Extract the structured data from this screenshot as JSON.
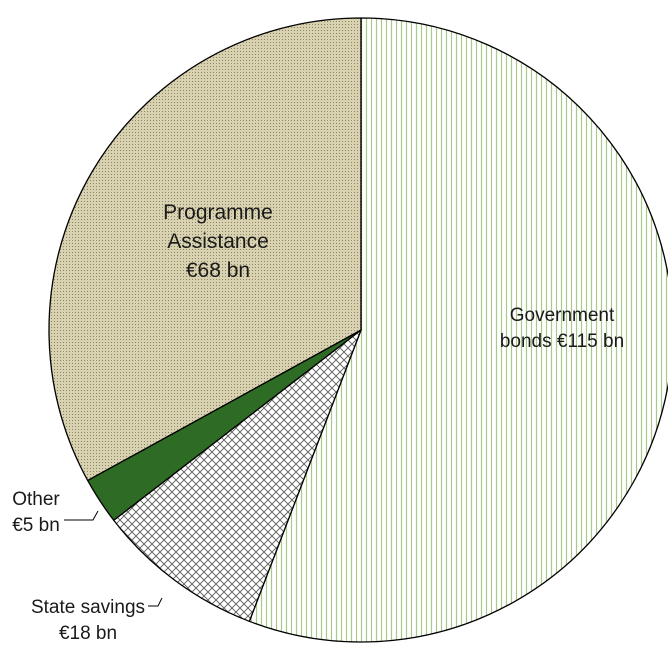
{
  "chart_data": {
    "type": "pie",
    "currency_unit": "€ bn",
    "slices": [
      {
        "name": "Government bonds",
        "value": 115,
        "label_lines": [
          "Government",
          "bonds €115 bn"
        ],
        "fill": "#ffffff",
        "pattern": "vertical-stripes",
        "pattern_color": "#a9c98a",
        "label_position": "inside"
      },
      {
        "name": "State savings",
        "value": 18,
        "label_lines": [
          "State savings",
          "€18 bn"
        ],
        "fill": "#ffffff",
        "pattern": "crosshatch",
        "pattern_color": "#5a5a5a",
        "label_position": "outside-left"
      },
      {
        "name": "Other",
        "value": 5,
        "label_lines": [
          "Other",
          "€5 bn"
        ],
        "fill": "#2e6b24",
        "pattern": "solid",
        "pattern_color": "#2e6b24",
        "label_position": "outside-left"
      },
      {
        "name": "Programme Assistance",
        "value": 68,
        "label_lines": [
          "Programme",
          "Assistance",
          "€68 bn"
        ],
        "fill": "#d8d2b0",
        "pattern": "dots",
        "pattern_color": "#8c8466",
        "label_position": "inside"
      }
    ],
    "start_angle": "12 o'clock",
    "direction": "clockwise",
    "legend": "none",
    "title": ""
  }
}
